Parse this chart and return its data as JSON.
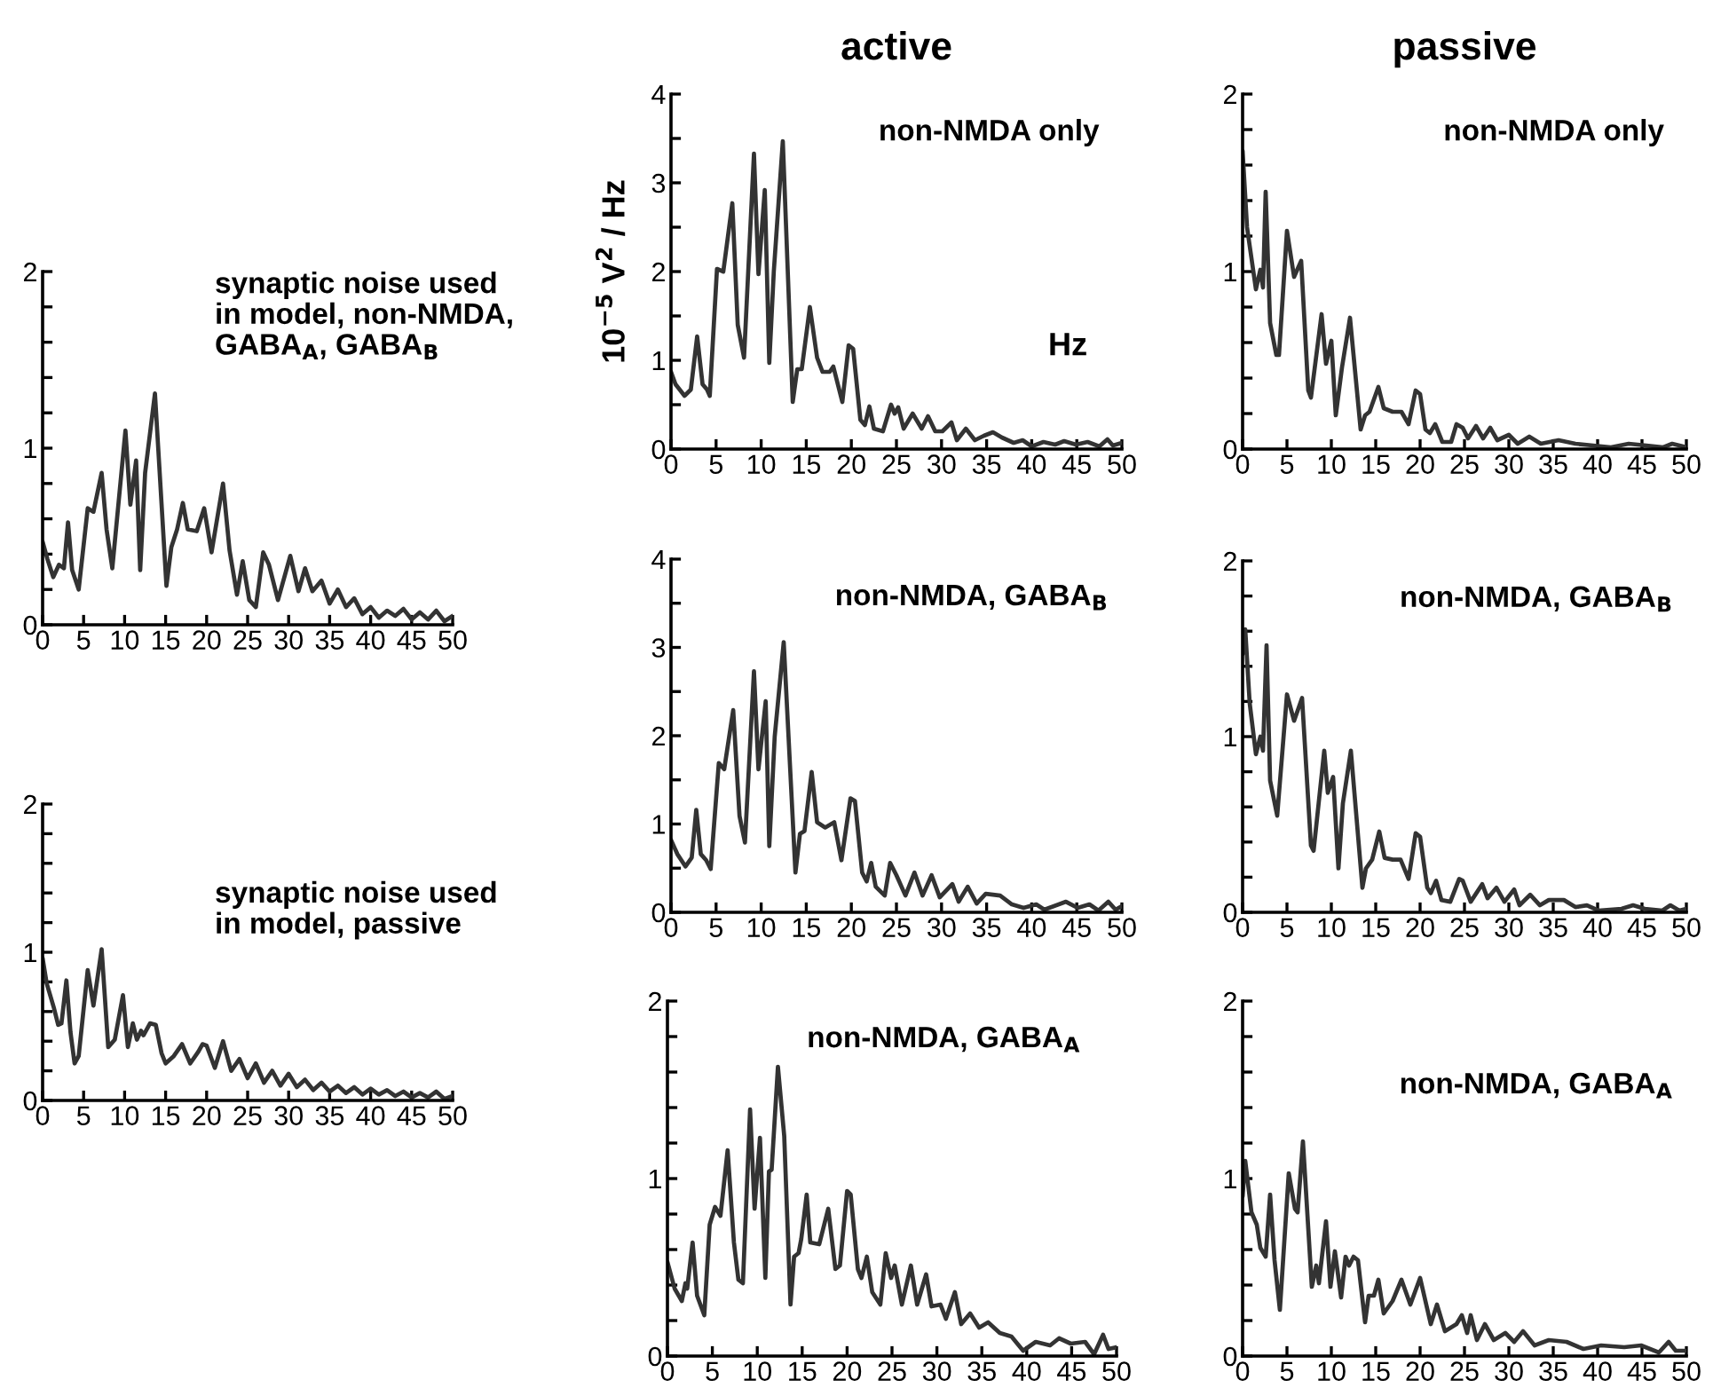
{
  "chart_data": [
    {
      "type": "line",
      "title": "active",
      "ylabel": "10$^{−5}$ V$^{2}$ / Hz",
      "xlabel": "Hz",
      "annotations": [
        "non-NMDA only"
      ],
      "color": "#333333",
      "xlim": [
        0,
        50
      ],
      "ylim": [
        0,
        4
      ],
      "xticks": [
        0,
        5,
        10,
        15,
        20,
        25,
        30,
        35,
        40,
        45,
        50
      ],
      "yticks": [
        0,
        {
          "value": 0.5,
          "label": null
        },
        1,
        {
          "value": 1.5,
          "label": null
        },
        2,
        {
          "value": 2.5,
          "label": null
        },
        3,
        {
          "value": 3.5,
          "label": null
        },
        4
      ],
      "x": [
        0,
        0.5,
        1.5,
        2.2,
        2.9,
        3.5,
        4,
        4.3,
        5.1,
        5.8,
        6.8,
        7.4,
        8.1,
        9.2,
        9.7,
        10.4,
        10.9,
        11.4,
        12.4,
        13.5,
        14,
        14.5,
        15.4,
        16.2,
        16.8,
        17.6,
        18,
        19,
        19.7,
        20.2,
        21,
        21.5,
        22,
        22.5,
        23.5,
        24.4,
        24.8,
        25.2,
        25.8,
        26.8,
        27.8,
        28.5,
        29.3,
        30.1,
        31.1,
        31.7,
        32.7,
        33.7,
        34.7,
        35.7,
        36.7,
        38,
        39,
        40,
        41.3,
        42.6,
        43.6,
        44.9,
        46.2,
        47.5,
        48.4,
        49,
        50
      ],
      "values": [
        0.87,
        0.73,
        0.6,
        0.67,
        1.27,
        0.73,
        0.67,
        0.6,
        2.03,
        2.0,
        2.77,
        1.4,
        1.03,
        3.33,
        1.97,
        2.92,
        0.97,
        2.0,
        3.47,
        0.53,
        0.9,
        0.9,
        1.6,
        1.03,
        0.87,
        0.87,
        0.93,
        0.53,
        1.17,
        1.13,
        0.33,
        0.27,
        0.48,
        0.23,
        0.2,
        0.5,
        0.4,
        0.47,
        0.23,
        0.4,
        0.23,
        0.37,
        0.2,
        0.2,
        0.3,
        0.1,
        0.23,
        0.1,
        0.15,
        0.19,
        0.13,
        0.07,
        0.1,
        0.03,
        0.08,
        0.05,
        0.09,
        0.05,
        0.08,
        0.03,
        0.11,
        0.04,
        0.07
      ]
    },
    {
      "type": "line",
      "title": "passive",
      "annotations": [
        "non-NMDA only"
      ],
      "color": "#333333",
      "xlim": [
        0,
        50
      ],
      "ylim": [
        0,
        2
      ],
      "xticks": [
        0,
        5,
        10,
        15,
        20,
        25,
        30,
        35,
        40,
        45,
        50
      ],
      "yticks": [
        0,
        {
          "value": 0.2,
          "label": null
        },
        {
          "value": 0.4,
          "label": null
        },
        {
          "value": 0.6,
          "label": null
        },
        {
          "value": 0.8,
          "label": null
        },
        1,
        {
          "value": 1.2,
          "label": null
        },
        {
          "value": 1.4,
          "label": null
        },
        {
          "value": 1.6,
          "label": null
        },
        {
          "value": 1.8,
          "label": null
        },
        2
      ],
      "x": [
        0,
        0.5,
        1.5,
        2,
        2.3,
        2.6,
        3.1,
        3.8,
        4.1,
        5,
        5.8,
        6.6,
        7.4,
        7.7,
        8.9,
        9.4,
        10,
        10.5,
        11.2,
        12.1,
        13.3,
        13.8,
        14.3,
        15.3,
        15.9,
        16.9,
        17.9,
        18.7,
        19.5,
        20,
        20.6,
        21.1,
        21.7,
        22.5,
        23.5,
        24.1,
        24.8,
        25.4,
        26.3,
        27.1,
        27.9,
        28.7,
        30,
        31,
        32.3,
        33.6,
        35.6,
        37.5,
        39.5,
        41.5,
        43.5,
        45.5,
        47.4,
        48.4,
        50
      ],
      "values": [
        1.68,
        1.25,
        0.9,
        1.01,
        0.91,
        1.45,
        0.71,
        0.53,
        0.53,
        1.23,
        0.97,
        1.06,
        0.33,
        0.29,
        0.76,
        0.48,
        0.61,
        0.19,
        0.46,
        0.74,
        0.11,
        0.19,
        0.21,
        0.35,
        0.23,
        0.21,
        0.21,
        0.14,
        0.33,
        0.31,
        0.11,
        0.09,
        0.14,
        0.04,
        0.04,
        0.14,
        0.12,
        0.06,
        0.13,
        0.06,
        0.12,
        0.05,
        0.08,
        0.03,
        0.07,
        0.03,
        0.05,
        0.03,
        0.02,
        0.01,
        0.03,
        0.02,
        0.01,
        0.03,
        0.01
      ]
    },
    {
      "type": "line",
      "annotations": [
        "synaptic noise used\nin model, non-NMDA,\nGABA$_{A}$, GABA$_{B}$"
      ],
      "color": "#333333",
      "xlim": [
        0,
        50
      ],
      "ylim": [
        0,
        2
      ],
      "xticks": [
        0,
        5,
        10,
        15,
        20,
        25,
        30,
        35,
        40,
        45,
        50
      ],
      "yticks": [
        0,
        {
          "value": 0.2,
          "label": null
        },
        {
          "value": 0.4,
          "label": null
        },
        {
          "value": 0.6,
          "label": null
        },
        {
          "value": 0.8,
          "label": null
        },
        1,
        {
          "value": 1.2,
          "label": null
        },
        {
          "value": 1.4,
          "label": null
        },
        {
          "value": 1.6,
          "label": null
        },
        {
          "value": 1.8,
          "label": null
        },
        2
      ],
      "x": [
        0,
        0.6,
        1.3,
        2,
        2.6,
        3.1,
        3.6,
        4.4,
        5.5,
        6.2,
        7.2,
        7.8,
        8.5,
        10.1,
        10.7,
        11.4,
        11.9,
        12.5,
        13.7,
        15.1,
        15.7,
        16.4,
        17.1,
        17.7,
        18.8,
        19.7,
        20.6,
        22,
        22.8,
        23.7,
        24.4,
        25.2,
        26,
        26.9,
        27.6,
        28.7,
        30.2,
        31.2,
        32,
        32.9,
        34,
        35,
        36,
        37,
        38,
        39,
        40,
        41,
        42,
        43,
        44,
        45,
        46,
        47,
        48,
        49,
        50
      ],
      "values": [
        0.47,
        0.37,
        0.27,
        0.34,
        0.32,
        0.58,
        0.31,
        0.2,
        0.66,
        0.64,
        0.86,
        0.54,
        0.32,
        1.1,
        0.68,
        0.93,
        0.31,
        0.86,
        1.31,
        0.22,
        0.44,
        0.54,
        0.69,
        0.54,
        0.53,
        0.66,
        0.41,
        0.8,
        0.42,
        0.17,
        0.36,
        0.14,
        0.1,
        0.41,
        0.34,
        0.14,
        0.39,
        0.19,
        0.32,
        0.19,
        0.25,
        0.12,
        0.2,
        0.1,
        0.15,
        0.06,
        0.1,
        0.04,
        0.08,
        0.05,
        0.09,
        0.03,
        0.07,
        0.03,
        0.08,
        0.02,
        0.05
      ]
    },
    {
      "type": "line",
      "annotations": [
        "non-NMDA, GABA$_{B}$"
      ],
      "color": "#333333",
      "xlim": [
        0,
        50
      ],
      "ylim": [
        0,
        4
      ],
      "xticks": [
        0,
        5,
        10,
        15,
        20,
        25,
        30,
        35,
        40,
        45,
        50
      ],
      "yticks": [
        0,
        {
          "value": 0.5,
          "label": null
        },
        1,
        {
          "value": 1.5,
          "label": null
        },
        2,
        {
          "value": 2.5,
          "label": null
        },
        3,
        {
          "value": 3.5,
          "label": null
        },
        4
      ],
      "x": [
        0,
        0.7,
        1.6,
        2.3,
        2.8,
        3.3,
        3.9,
        4.4,
        5.3,
        5.9,
        6.9,
        7.6,
        8.2,
        9.2,
        9.7,
        10.5,
        10.9,
        11.5,
        12.5,
        13.8,
        14.3,
        14.8,
        15.6,
        16.2,
        17.1,
        18.1,
        18.9,
        19.9,
        20.4,
        21.2,
        21.7,
        22.2,
        22.7,
        23.7,
        24.3,
        25,
        26,
        27,
        27.9,
        28.9,
        29.8,
        31.2,
        31.9,
        32.9,
        33.9,
        34.9,
        36.5,
        37.8,
        39.1,
        40.5,
        41.4,
        43.8,
        45.1,
        46.4,
        47.4,
        48.5,
        49.3,
        50
      ],
      "values": [
        0.82,
        0.66,
        0.52,
        0.62,
        1.16,
        0.66,
        0.59,
        0.49,
        1.69,
        1.62,
        2.29,
        1.09,
        0.79,
        2.73,
        1.62,
        2.39,
        0.75,
        1.99,
        3.06,
        0.45,
        0.89,
        0.92,
        1.59,
        1.02,
        0.96,
        1.02,
        0.59,
        1.29,
        1.26,
        0.45,
        0.35,
        0.56,
        0.29,
        0.19,
        0.56,
        0.42,
        0.19,
        0.45,
        0.19,
        0.42,
        0.17,
        0.32,
        0.12,
        0.29,
        0.1,
        0.21,
        0.19,
        0.09,
        0.05,
        0.09,
        0.03,
        0.12,
        0.05,
        0.09,
        0.02,
        0.12,
        0.03,
        0.07
      ]
    },
    {
      "type": "line",
      "annotations": [
        "non-NMDA, GABA$_{B}$"
      ],
      "color": "#333333",
      "xlim": [
        0,
        50
      ],
      "ylim": [
        0,
        2
      ],
      "xticks": [
        0,
        5,
        10,
        15,
        20,
        25,
        30,
        35,
        40,
        45,
        50
      ],
      "yticks": [
        0,
        {
          "value": 0.2,
          "label": null
        },
        {
          "value": 0.4,
          "label": null
        },
        {
          "value": 0.6,
          "label": null
        },
        {
          "value": 0.8,
          "label": null
        },
        1,
        {
          "value": 1.2,
          "label": null
        },
        {
          "value": 1.4,
          "label": null
        },
        {
          "value": 1.6,
          "label": null
        },
        {
          "value": 1.8,
          "label": null
        },
        2
      ],
      "x": [
        0,
        0.3,
        0.8,
        1.5,
        2,
        2.3,
        2.7,
        3.1,
        3.9,
        5,
        5.8,
        6.7,
        7.7,
        8,
        9.2,
        9.6,
        10.2,
        10.8,
        11.3,
        12.2,
        13.5,
        13.9,
        14.6,
        15.4,
        16,
        16.9,
        17.8,
        18.7,
        19.5,
        20,
        20.8,
        21.2,
        21.8,
        22.4,
        23.4,
        24.4,
        24.8,
        25.7,
        27,
        27.6,
        28.6,
        29.5,
        30.6,
        31.2,
        32.4,
        33.5,
        34.5,
        36.2,
        37.5,
        38.8,
        40.1,
        42.7,
        44,
        45.3,
        47.3,
        48.2,
        49.2,
        50
      ],
      "values": [
        1.47,
        1.61,
        1.19,
        0.9,
        1.0,
        0.92,
        1.52,
        0.75,
        0.55,
        1.24,
        1.09,
        1.22,
        0.38,
        0.35,
        0.92,
        0.68,
        0.77,
        0.25,
        0.62,
        0.92,
        0.14,
        0.25,
        0.3,
        0.46,
        0.31,
        0.3,
        0.3,
        0.19,
        0.45,
        0.43,
        0.14,
        0.11,
        0.18,
        0.07,
        0.06,
        0.19,
        0.18,
        0.06,
        0.16,
        0.08,
        0.14,
        0.06,
        0.13,
        0.04,
        0.1,
        0.04,
        0.07,
        0.07,
        0.03,
        0.04,
        0.01,
        0.02,
        0.04,
        0.02,
        0.01,
        0.04,
        0.01,
        0.02
      ]
    },
    {
      "type": "line",
      "annotations": [
        "synaptic noise used\nin model, passive"
      ],
      "color": "#333333",
      "xlim": [
        0,
        50
      ],
      "ylim": [
        0,
        2
      ],
      "xticks": [
        0,
        5,
        10,
        15,
        20,
        25,
        30,
        35,
        40,
        45,
        50
      ],
      "yticks": [
        0,
        {
          "value": 0.2,
          "label": null
        },
        {
          "value": 0.4,
          "label": null
        },
        {
          "value": 0.6,
          "label": null
        },
        {
          "value": 0.8,
          "label": null
        },
        1,
        {
          "value": 1.2,
          "label": null
        },
        {
          "value": 1.4,
          "label": null
        },
        {
          "value": 1.6,
          "label": null
        },
        {
          "value": 1.8,
          "label": null
        },
        2
      ],
      "x": [
        0,
        0.5,
        1.4,
        1.9,
        2.3,
        2.9,
        3.4,
        3.9,
        4.4,
        5.5,
        6.2,
        7.2,
        8,
        8.8,
        9.8,
        10.4,
        11,
        11.5,
        12,
        12.3,
        13.1,
        13.8,
        14.5,
        15,
        16,
        17,
        18,
        19,
        19.5,
        20,
        21,
        22,
        23,
        24,
        25,
        26,
        27,
        28,
        29,
        30,
        31,
        32,
        33,
        34,
        35,
        36,
        37,
        38,
        39,
        40,
        41,
        42,
        43,
        44,
        45,
        46,
        47,
        48,
        49,
        50
      ],
      "values": [
        0.96,
        0.79,
        0.62,
        0.51,
        0.52,
        0.81,
        0.46,
        0.25,
        0.3,
        0.88,
        0.64,
        1.02,
        0.36,
        0.41,
        0.71,
        0.36,
        0.52,
        0.41,
        0.47,
        0.44,
        0.52,
        0.51,
        0.32,
        0.25,
        0.3,
        0.38,
        0.25,
        0.33,
        0.38,
        0.37,
        0.22,
        0.4,
        0.2,
        0.28,
        0.15,
        0.25,
        0.12,
        0.2,
        0.1,
        0.18,
        0.09,
        0.14,
        0.07,
        0.12,
        0.06,
        0.1,
        0.05,
        0.09,
        0.04,
        0.08,
        0.04,
        0.07,
        0.03,
        0.06,
        0.02,
        0.05,
        0.02,
        0.06,
        0.01,
        0.03
      ]
    },
    {
      "type": "line",
      "annotations": [
        "non-NMDA, GABA$_{A}$"
      ],
      "color": "#333333",
      "xlim": [
        0,
        50
      ],
      "ylim": [
        0,
        2
      ],
      "xticks": [
        0,
        5,
        10,
        15,
        20,
        25,
        30,
        35,
        40,
        45,
        50
      ],
      "yticks": [
        0,
        {
          "value": 0.2,
          "label": null
        },
        {
          "value": 0.4,
          "label": null
        },
        {
          "value": 0.6,
          "label": null
        },
        {
          "value": 0.8,
          "label": null
        },
        1,
        {
          "value": 1.2,
          "label": null
        },
        {
          "value": 1.4,
          "label": null
        },
        {
          "value": 1.6,
          "label": null
        },
        {
          "value": 1.8,
          "label": null
        },
        2
      ],
      "x": [
        0,
        0.8,
        1.6,
        2,
        2.2,
        2.8,
        3.3,
        4.1,
        4.7,
        5.3,
        5.9,
        6.7,
        7.4,
        7.9,
        8.4,
        9.2,
        9.7,
        10.3,
        10.9,
        11.3,
        11.6,
        12.3,
        13,
        13.7,
        14.1,
        14.6,
        14.9,
        15.5,
        15.9,
        16.9,
        17.9,
        18.7,
        19.2,
        20,
        20.4,
        21.2,
        21.6,
        22.2,
        22.8,
        23.7,
        24.3,
        24.9,
        25.3,
        26.1,
        27.1,
        27.8,
        28.8,
        29.4,
        30.4,
        31,
        32,
        32.7,
        33.7,
        34.7,
        35.7,
        37,
        38.3,
        39.6,
        41,
        42.6,
        43.6,
        44.9,
        46.5,
        47.5,
        48.5,
        49.1,
        50
      ],
      "values": [
        0.53,
        0.38,
        0.31,
        0.41,
        0.38,
        0.64,
        0.34,
        0.23,
        0.74,
        0.84,
        0.79,
        1.16,
        0.64,
        0.43,
        0.41,
        1.39,
        0.83,
        1.23,
        0.44,
        1.04,
        1.05,
        1.63,
        1.24,
        0.29,
        0.56,
        0.58,
        0.66,
        0.91,
        0.64,
        0.63,
        0.83,
        0.49,
        0.51,
        0.93,
        0.91,
        0.49,
        0.44,
        0.56,
        0.36,
        0.29,
        0.58,
        0.44,
        0.51,
        0.29,
        0.51,
        0.29,
        0.46,
        0.28,
        0.29,
        0.21,
        0.36,
        0.18,
        0.24,
        0.16,
        0.19,
        0.13,
        0.11,
        0.03,
        0.08,
        0.06,
        0.1,
        0.07,
        0.08,
        0.01,
        0.12,
        0.04,
        0.05
      ]
    },
    {
      "type": "line",
      "annotations": [
        "non-NMDA, GABA$_{A}$"
      ],
      "color": "#333333",
      "xlim": [
        0,
        50
      ],
      "ylim": [
        0,
        2
      ],
      "xticks": [
        0,
        5,
        10,
        15,
        20,
        25,
        30,
        35,
        40,
        45,
        50
      ],
      "yticks": [
        0,
        {
          "value": 0.2,
          "label": null
        },
        {
          "value": 0.4,
          "label": null
        },
        {
          "value": 0.6,
          "label": null
        },
        {
          "value": 0.8,
          "label": null
        },
        1,
        {
          "value": 1.2,
          "label": null
        },
        {
          "value": 1.4,
          "label": null
        },
        {
          "value": 1.6,
          "label": null
        },
        {
          "value": 1.8,
          "label": null
        },
        2
      ],
      "x": [
        0,
        0.3,
        1,
        1.6,
        2,
        2.6,
        3.1,
        3.6,
        4.2,
        5.2,
        5.9,
        6.2,
        6.8,
        7.8,
        8.3,
        8.6,
        9.4,
        9.9,
        10.4,
        11.1,
        11.6,
        12,
        12.5,
        13,
        13.8,
        14.2,
        14.8,
        15.3,
        15.9,
        16.9,
        17.9,
        18.9,
        20,
        21.2,
        21.9,
        22.8,
        24.1,
        24.7,
        25.3,
        25.7,
        26.4,
        27.3,
        28.3,
        29.6,
        30.6,
        31.6,
        32.9,
        34.5,
        36.5,
        38.4,
        40.4,
        43,
        44.9,
        46.9,
        48,
        48.8,
        50
      ],
      "values": [
        0.9,
        1.1,
        0.81,
        0.74,
        0.61,
        0.56,
        0.91,
        0.54,
        0.26,
        1.03,
        0.83,
        0.81,
        1.21,
        0.39,
        0.51,
        0.41,
        0.76,
        0.39,
        0.59,
        0.33,
        0.56,
        0.51,
        0.56,
        0.54,
        0.19,
        0.34,
        0.34,
        0.43,
        0.24,
        0.31,
        0.43,
        0.29,
        0.44,
        0.18,
        0.29,
        0.14,
        0.18,
        0.23,
        0.13,
        0.23,
        0.09,
        0.18,
        0.09,
        0.13,
        0.08,
        0.14,
        0.06,
        0.09,
        0.08,
        0.04,
        0.06,
        0.05,
        0.06,
        0.02,
        0.08,
        0.03,
        0.03
      ]
    }
  ]
}
